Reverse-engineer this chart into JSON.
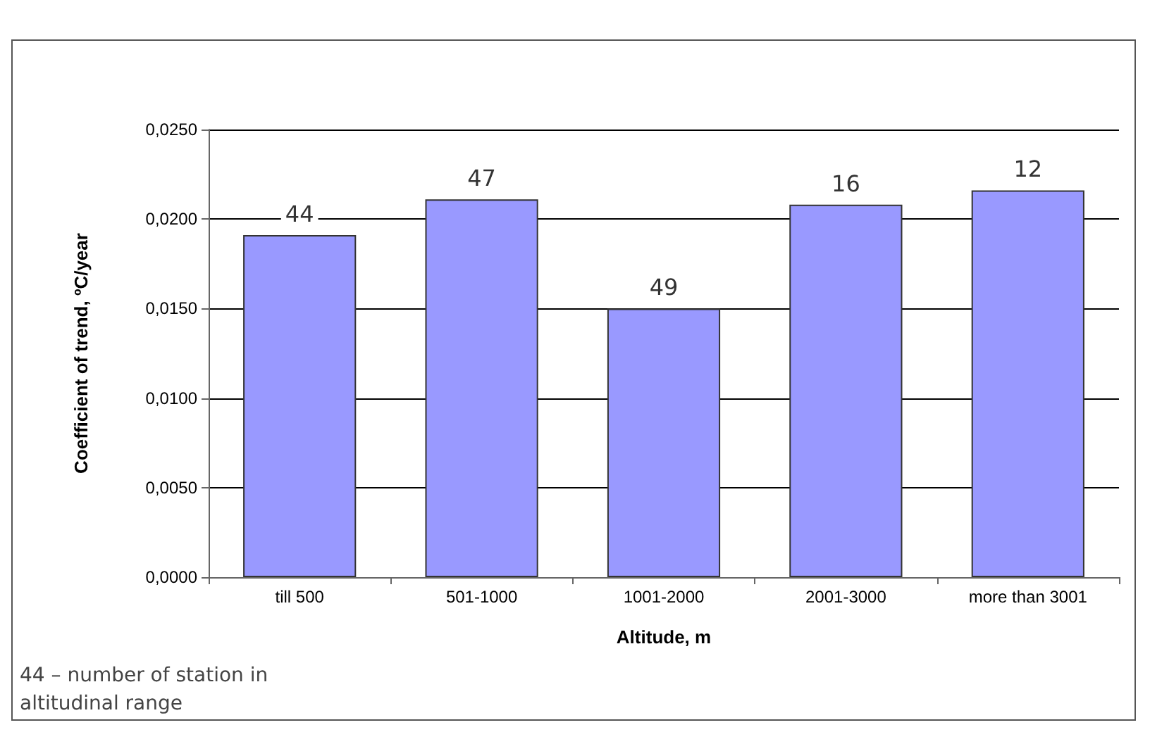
{
  "chart_data": {
    "type": "bar",
    "xlabel": "Altitude, m",
    "ylabel": "Coefficient of trend, ºC/year",
    "categories": [
      "till 500",
      "501-1000",
      "1001-2000",
      "2001-3000",
      "more than 3001"
    ],
    "values": [
      0.0191,
      0.0211,
      0.015,
      0.0208,
      0.0216
    ],
    "color": "#9999ff",
    "ylim": [
      0,
      0.025
    ],
    "yticks": [
      {
        "value": 0,
        "label": "0,0000"
      },
      {
        "value": 0.005,
        "label": "0,0050"
      },
      {
        "value": 0.01,
        "label": "0,0100"
      },
      {
        "value": 0.015,
        "label": "0,0150"
      },
      {
        "value": 0.02,
        "label": "0,0200"
      },
      {
        "value": 0.025,
        "label": "0,0250"
      }
    ],
    "grid": "y",
    "annotations": [
      {
        "text": "44",
        "x": "till 500",
        "y": 0.0191
      },
      {
        "text": "47",
        "x": "501-1000",
        "y": 0.0211
      },
      {
        "text": "49",
        "x": "1001-2000",
        "y": 0.015
      },
      {
        "text": "16",
        "x": "2001-3000",
        "y": 0.0208
      },
      {
        "text": "12",
        "x": "more than 3001",
        "y": 0.0216
      },
      "44 – number of station in altitudinal range"
    ]
  }
}
